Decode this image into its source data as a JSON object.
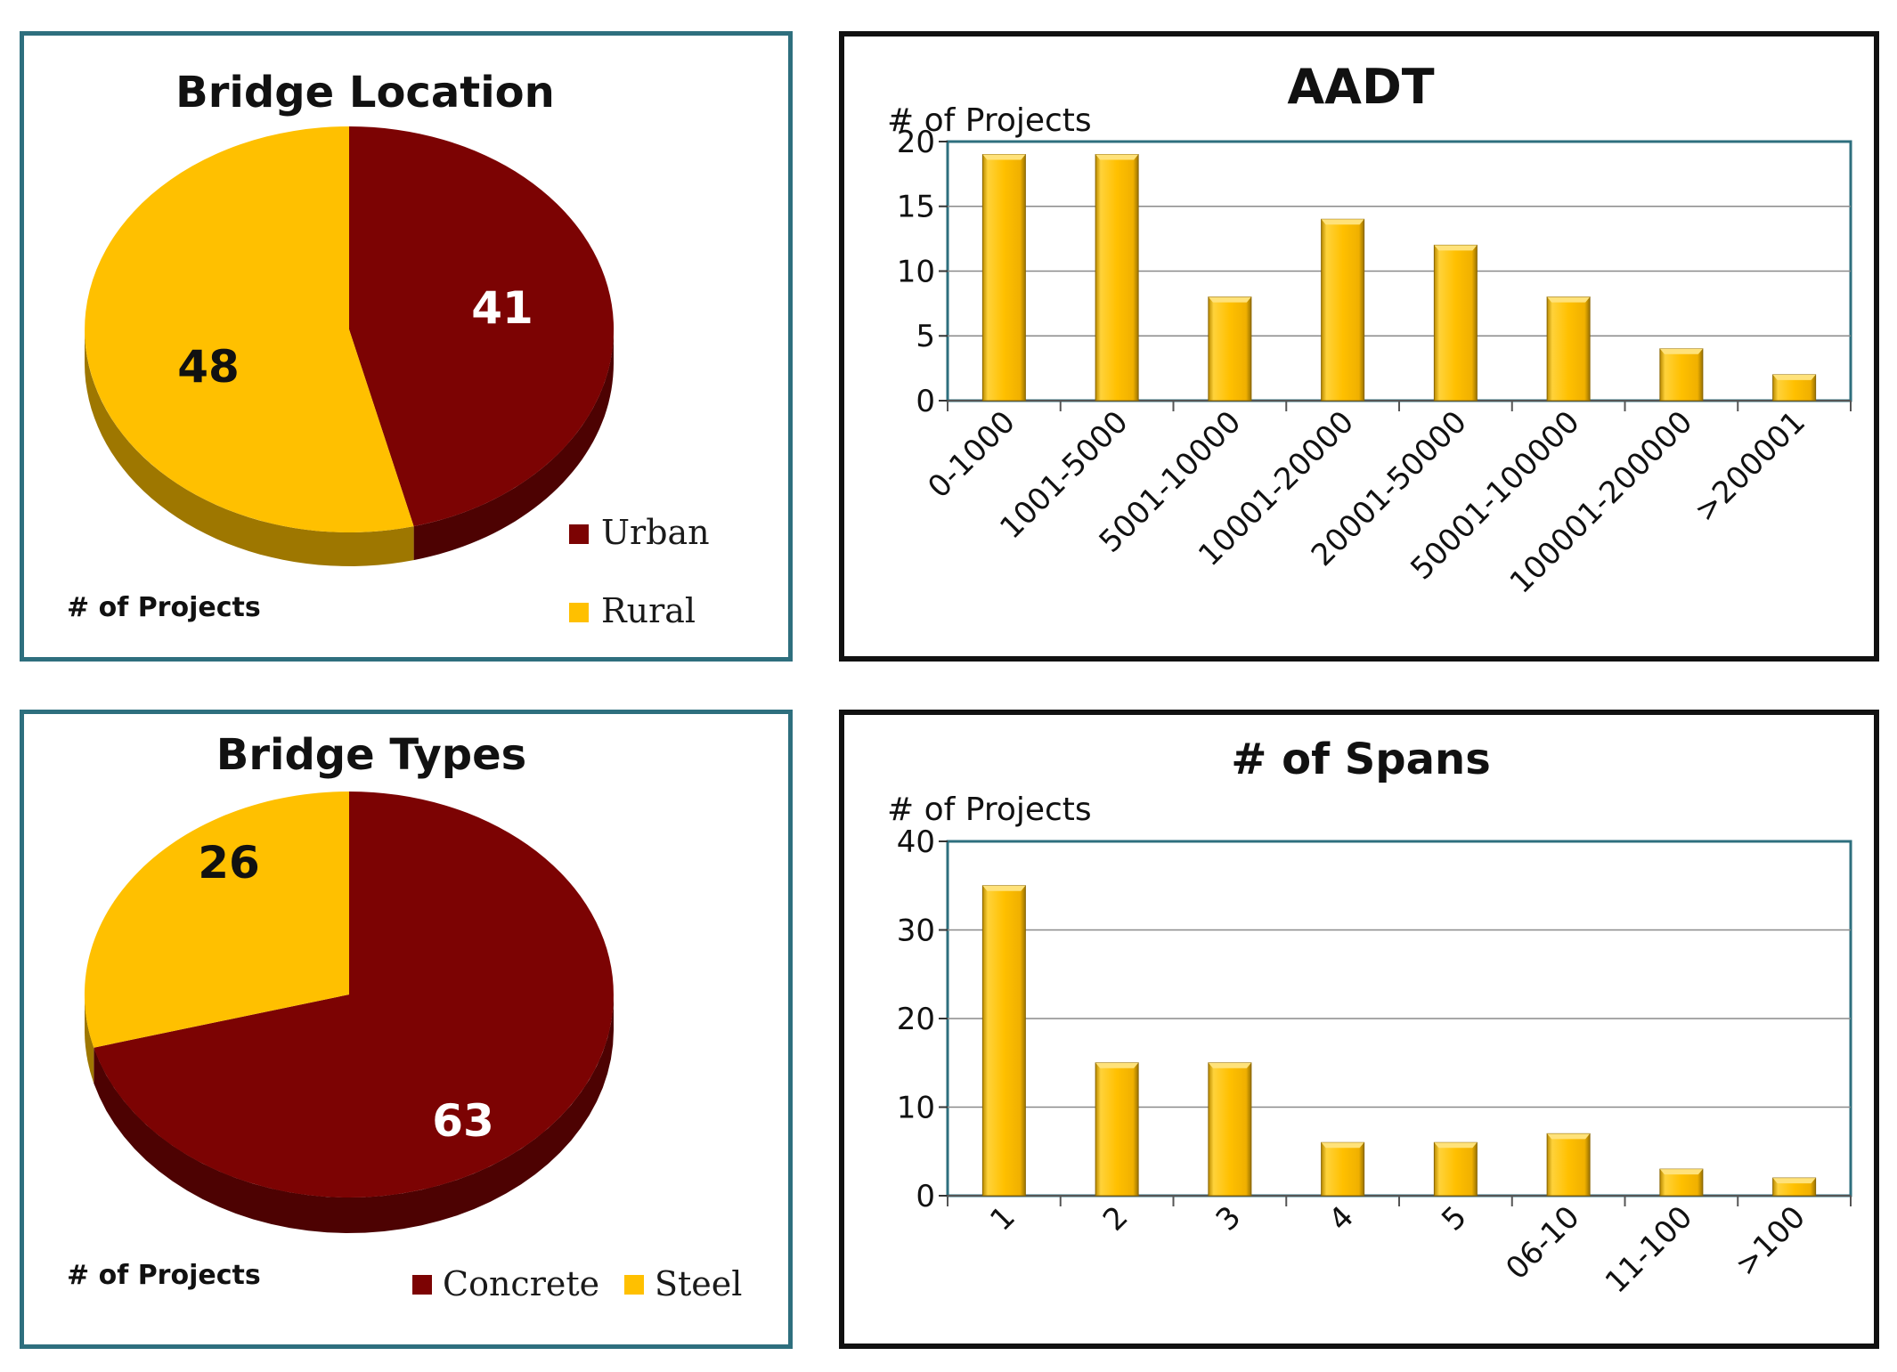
{
  "colors": {
    "urban": "#7c0303",
    "rural": "#ffc000",
    "bar": "#ffc000",
    "frame": "#2e6f7e"
  },
  "chart_data": [
    {
      "id": "bridge-location",
      "type": "pie",
      "title": "Bridge Location",
      "axis_label": "# of Projects",
      "slices": [
        {
          "label": "Urban",
          "value": 41,
          "color": "#7c0303",
          "text_color": "#ffffff"
        },
        {
          "label": "Rural",
          "value": 48,
          "color": "#ffc000",
          "text_color": "#111111"
        }
      ],
      "legend_position": "bottom-right"
    },
    {
      "id": "aadt",
      "type": "bar",
      "title": "AADT",
      "ylabel": "# of Projects",
      "ylim": [
        0,
        20
      ],
      "yticks": [
        0,
        5,
        10,
        15,
        20
      ],
      "categories": [
        "0-1000",
        "1001-5000",
        "5001-10000",
        "10001-20000",
        "20001-50000",
        "50001-100000",
        "100001-200000",
        ">200001"
      ],
      "values": [
        19,
        19,
        8,
        14,
        12,
        8,
        4,
        2
      ]
    },
    {
      "id": "bridge-types",
      "type": "pie",
      "title": "Bridge Types",
      "axis_label": "# of Projects",
      "slices": [
        {
          "label": "Concrete",
          "value": 63,
          "color": "#7c0303",
          "text_color": "#ffffff"
        },
        {
          "label": "Steel",
          "value": 26,
          "color": "#ffc000",
          "text_color": "#111111"
        }
      ],
      "legend_position": "bottom"
    },
    {
      "id": "spans",
      "type": "bar",
      "title": "# of Spans",
      "ylabel": "# of Projects",
      "ylim": [
        0,
        40
      ],
      "yticks": [
        0,
        10,
        20,
        30,
        40
      ],
      "categories": [
        "1",
        "2",
        "3",
        "4",
        "5",
        "06-10",
        "11-100",
        ">100"
      ],
      "values": [
        35,
        15,
        15,
        6,
        6,
        7,
        3,
        2
      ]
    }
  ]
}
